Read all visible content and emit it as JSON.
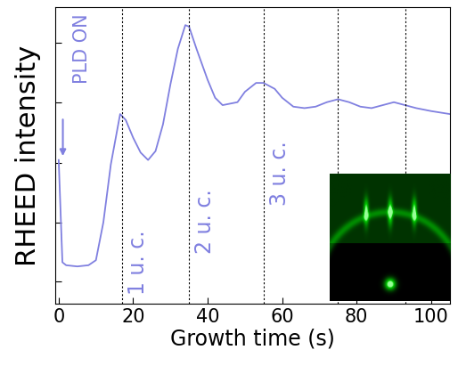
{
  "chart_data": {
    "type": "line",
    "xlabel": "Growth time (s)",
    "ylabel": "RHEED intensity",
    "annotation": "PLD ON",
    "layer_labels": [
      "1 u. c.",
      "2 u. c.",
      "3 u. c."
    ],
    "vertical_lines": [
      17,
      35,
      55,
      75,
      93
    ],
    "x": [
      0,
      1,
      2,
      5,
      8,
      10,
      12,
      14,
      16.5,
      18,
      20,
      22,
      24,
      26,
      28,
      30,
      32,
      34,
      35,
      37,
      40,
      42,
      44,
      46,
      48,
      50,
      53,
      55,
      58,
      60,
      63,
      66,
      69,
      72,
      75,
      78,
      81,
      84,
      87,
      90,
      93,
      96,
      100,
      105
    ],
    "values": [
      4.85,
      1.4,
      1.3,
      1.26,
      1.3,
      1.47,
      2.75,
      4.7,
      6.4,
      6.2,
      5.6,
      5.1,
      4.85,
      5.15,
      6.05,
      7.4,
      8.6,
      9.4,
      9.35,
      8.6,
      7.55,
      6.95,
      6.7,
      6.75,
      6.8,
      7.15,
      7.45,
      7.45,
      7.25,
      6.95,
      6.65,
      6.6,
      6.65,
      6.8,
      6.9,
      6.8,
      6.65,
      6.6,
      6.7,
      6.8,
      6.7,
      6.6,
      6.5,
      6.4
    ],
    "color": "#8080e0",
    "xlim": [
      -1,
      105
    ],
    "xticks": [
      0,
      20,
      40,
      60,
      80,
      100
    ],
    "ylim": [
      0,
      10
    ],
    "yticks": [
      0.75,
      2.75,
      4.75,
      6.8,
      8.8
    ],
    "tick_labels": "x"
  }
}
